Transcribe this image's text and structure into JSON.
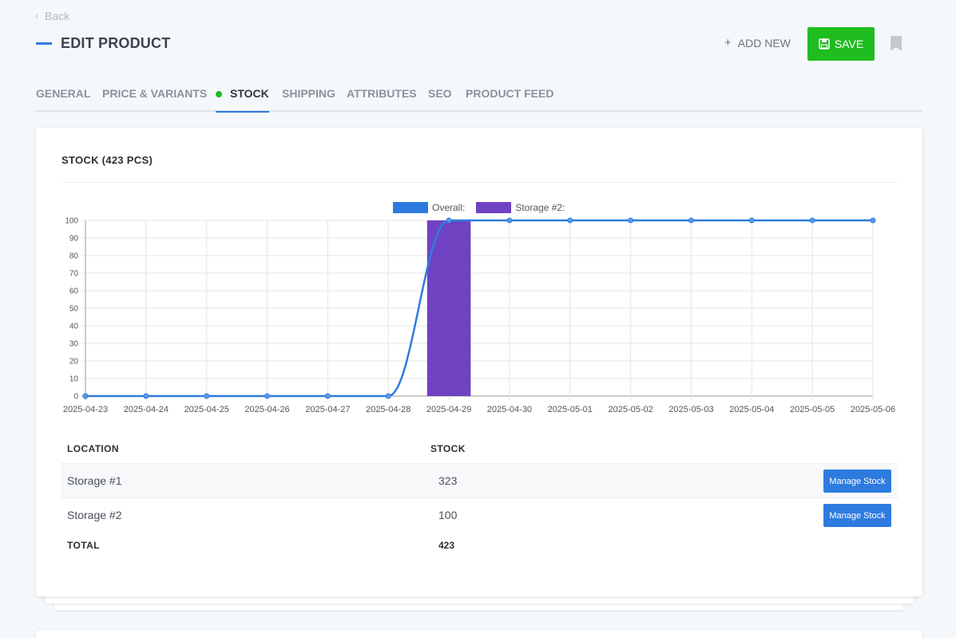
{
  "header": {
    "back_label": "Back",
    "page_title": "EDIT PRODUCT",
    "add_new_label": "ADD NEW",
    "save_label": "SAVE"
  },
  "tabs": [
    {
      "label": "GENERAL",
      "active": false
    },
    {
      "label": "PRICE & VARIANTS",
      "active": false
    },
    {
      "label": "STOCK",
      "active": true
    },
    {
      "label": "SHIPPING",
      "active": false
    },
    {
      "label": "ATTRIBUTES",
      "active": false
    },
    {
      "label": "SEO",
      "active": false
    },
    {
      "label": "PRODUCT FEED",
      "active": false
    }
  ],
  "stock_section": {
    "title": "STOCK (423 PCS)"
  },
  "chart_data": {
    "type": "line",
    "legend_position": "top-center",
    "grid": true,
    "ylim": [
      0,
      100
    ],
    "y_ticks": [
      "0",
      "10",
      "20",
      "30",
      "40",
      "50",
      "60",
      "70",
      "80",
      "90",
      "100"
    ],
    "x": [
      "2025-04-23",
      "2025-04-24",
      "2025-04-25",
      "2025-04-26",
      "2025-04-27",
      "2025-04-28",
      "2025-04-29",
      "2025-04-30",
      "2025-05-01",
      "2025-05-02",
      "2025-05-03",
      "2025-05-04",
      "2025-05-05",
      "2025-05-06"
    ],
    "series": [
      {
        "name": "Overall:",
        "type": "line",
        "color": "#2e7be0",
        "values": [
          0,
          0,
          0,
          0,
          0,
          0,
          100,
          100,
          100,
          100,
          100,
          100,
          100,
          100
        ]
      },
      {
        "name": "Storage #2:",
        "type": "bar",
        "color": "#6f42c1",
        "values": [
          null,
          null,
          null,
          null,
          null,
          null,
          100,
          null,
          null,
          null,
          null,
          null,
          null,
          null
        ]
      }
    ]
  },
  "table": {
    "headers": {
      "location": "LOCATION",
      "stock": "STOCK"
    },
    "rows": [
      {
        "location": "Storage #1",
        "stock": "323",
        "action": "Manage Stock"
      },
      {
        "location": "Storage #2",
        "stock": "100",
        "action": "Manage Stock"
      }
    ],
    "total_label": "TOTAL",
    "total_value": "423"
  },
  "colors": {
    "accent": "#2e7be0",
    "save_green": "#1fbd1f",
    "storage_purple": "#6f42c1"
  }
}
